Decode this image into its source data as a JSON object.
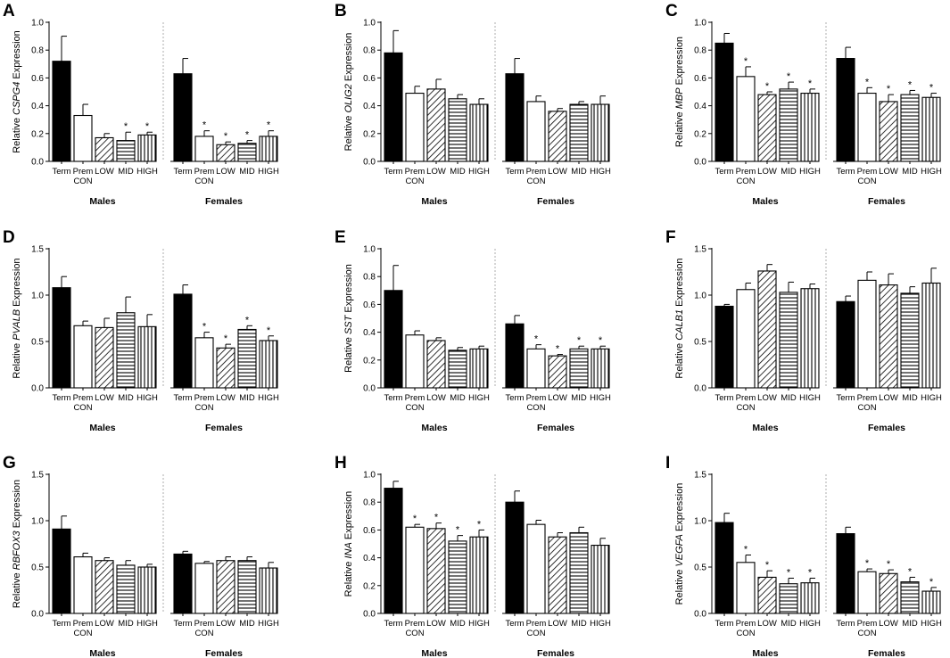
{
  "chart_data": [
    {
      "type": "bar",
      "panel": "A",
      "gene": "CSPG4",
      "ylabel_prefix": "Relative ",
      "ylabel_suffix": " Expression",
      "ylim": [
        0,
        1.0
      ],
      "yticks": [
        "0.0",
        "0.2",
        "0.4",
        "0.6",
        "0.8",
        "1.0"
      ],
      "categories": [
        [
          "Term"
        ],
        [
          "Prem",
          "CON"
        ],
        [
          "LOW"
        ],
        [
          "MID"
        ],
        [
          "HIGH"
        ]
      ],
      "groups": [
        {
          "name": "Males",
          "values": [
            0.72,
            0.33,
            0.17,
            0.15,
            0.19
          ],
          "errors": [
            0.18,
            0.08,
            0.03,
            0.06,
            0.02
          ],
          "sig": [
            false,
            false,
            false,
            true,
            true
          ]
        },
        {
          "name": "Females",
          "values": [
            0.63,
            0.18,
            0.12,
            0.13,
            0.18
          ],
          "errors": [
            0.11,
            0.04,
            0.02,
            0.02,
            0.04
          ],
          "sig": [
            false,
            true,
            true,
            true,
            true
          ]
        }
      ]
    },
    {
      "type": "bar",
      "panel": "B",
      "gene": "OLIG2",
      "ylabel_prefix": "Relative ",
      "ylabel_suffix": " Expression",
      "ylim": [
        0,
        1.0
      ],
      "yticks": [
        "0.0",
        "0.2",
        "0.4",
        "0.6",
        "0.8",
        "1.0"
      ],
      "categories": [
        [
          "Term"
        ],
        [
          "Prem",
          "CON"
        ],
        [
          "LOW"
        ],
        [
          "MID"
        ],
        [
          "HIGH"
        ]
      ],
      "groups": [
        {
          "name": "Males",
          "values": [
            0.78,
            0.49,
            0.52,
            0.45,
            0.41
          ],
          "errors": [
            0.16,
            0.05,
            0.07,
            0.03,
            0.04
          ],
          "sig": [
            false,
            false,
            false,
            false,
            false
          ]
        },
        {
          "name": "Females",
          "values": [
            0.63,
            0.43,
            0.36,
            0.41,
            0.41
          ],
          "errors": [
            0.11,
            0.04,
            0.02,
            0.02,
            0.06
          ],
          "sig": [
            false,
            false,
            false,
            false,
            false
          ]
        }
      ]
    },
    {
      "type": "bar",
      "panel": "C",
      "gene": "MBP",
      "ylabel_prefix": "Relative ",
      "ylabel_suffix": " Expression",
      "ylim": [
        0,
        1.0
      ],
      "yticks": [
        "0.0",
        "0.2",
        "0.4",
        "0.6",
        "0.8",
        "1.0"
      ],
      "categories": [
        [
          "Term"
        ],
        [
          "Prem",
          "CON"
        ],
        [
          "LOW"
        ],
        [
          "MID"
        ],
        [
          "HIGH"
        ]
      ],
      "groups": [
        {
          "name": "Males",
          "values": [
            0.85,
            0.61,
            0.48,
            0.52,
            0.49
          ],
          "errors": [
            0.07,
            0.07,
            0.02,
            0.05,
            0.03
          ],
          "sig": [
            false,
            true,
            true,
            true,
            true
          ]
        },
        {
          "name": "Females",
          "values": [
            0.74,
            0.49,
            0.43,
            0.48,
            0.46
          ],
          "errors": [
            0.08,
            0.04,
            0.05,
            0.03,
            0.03
          ],
          "sig": [
            false,
            true,
            true,
            true,
            true
          ]
        }
      ]
    },
    {
      "type": "bar",
      "panel": "D",
      "gene": "PVALB",
      "ylabel_prefix": "Relative ",
      "ylabel_suffix": " Expression",
      "ylim": [
        0,
        1.5
      ],
      "yticks": [
        "0.0",
        "0.5",
        "1.0",
        "1.5"
      ],
      "categories": [
        [
          "Term"
        ],
        [
          "Prem",
          "CON"
        ],
        [
          "LOW"
        ],
        [
          "MID"
        ],
        [
          "HIGH"
        ]
      ],
      "groups": [
        {
          "name": "Males",
          "values": [
            1.08,
            0.67,
            0.65,
            0.81,
            0.66
          ],
          "errors": [
            0.12,
            0.05,
            0.1,
            0.17,
            0.13
          ],
          "sig": [
            false,
            false,
            false,
            false,
            false
          ]
        },
        {
          "name": "Females",
          "values": [
            1.01,
            0.54,
            0.43,
            0.63,
            0.51
          ],
          "errors": [
            0.1,
            0.06,
            0.04,
            0.04,
            0.05
          ],
          "sig": [
            false,
            true,
            true,
            true,
            true
          ]
        }
      ]
    },
    {
      "type": "bar",
      "panel": "E",
      "gene": "SST",
      "ylabel_prefix": "Relative ",
      "ylabel_suffix": " Expression",
      "ylim": [
        0,
        1.0
      ],
      "yticks": [
        "0.0",
        "0.2",
        "0.4",
        "0.6",
        "0.8",
        "1.0"
      ],
      "categories": [
        [
          "Term"
        ],
        [
          "Prem",
          "CON"
        ],
        [
          "LOW"
        ],
        [
          "MID"
        ],
        [
          "HIGH"
        ]
      ],
      "groups": [
        {
          "name": "Males",
          "values": [
            0.7,
            0.38,
            0.34,
            0.27,
            0.28
          ],
          "errors": [
            0.18,
            0.03,
            0.02,
            0.02,
            0.02
          ],
          "sig": [
            false,
            false,
            false,
            false,
            false
          ]
        },
        {
          "name": "Females",
          "values": [
            0.46,
            0.28,
            0.23,
            0.28,
            0.28
          ],
          "errors": [
            0.06,
            0.03,
            0.01,
            0.02,
            0.02
          ],
          "sig": [
            false,
            true,
            true,
            true,
            true
          ]
        }
      ]
    },
    {
      "type": "bar",
      "panel": "F",
      "gene": "CALB1",
      "ylabel_prefix": "Relative ",
      "ylabel_suffix": " Expression",
      "ylim": [
        0,
        1.5
      ],
      "yticks": [
        "0.0",
        "0.5",
        "1.0",
        "1.5"
      ],
      "categories": [
        [
          "Term"
        ],
        [
          "Prem",
          "CON"
        ],
        [
          "LOW"
        ],
        [
          "MID"
        ],
        [
          "HIGH"
        ]
      ],
      "groups": [
        {
          "name": "Males",
          "values": [
            0.88,
            1.06,
            1.26,
            1.03,
            1.07
          ],
          "errors": [
            0.02,
            0.07,
            0.07,
            0.11,
            0.05
          ],
          "sig": [
            false,
            false,
            false,
            false,
            false
          ]
        },
        {
          "name": "Females",
          "values": [
            0.93,
            1.16,
            1.11,
            1.02,
            1.13
          ],
          "errors": [
            0.06,
            0.09,
            0.12,
            0.07,
            0.16
          ],
          "sig": [
            false,
            false,
            false,
            false,
            false
          ]
        }
      ]
    },
    {
      "type": "bar",
      "panel": "G",
      "gene": "RBFOX3",
      "ylabel_prefix": "Relative ",
      "ylabel_suffix": " Expression",
      "ylim": [
        0,
        1.5
      ],
      "yticks": [
        "0.0",
        "0.5",
        "1.0",
        "1.5"
      ],
      "categories": [
        [
          "Term"
        ],
        [
          "Prem",
          "CON"
        ],
        [
          "LOW"
        ],
        [
          "MID"
        ],
        [
          "HIGH"
        ]
      ],
      "groups": [
        {
          "name": "Males",
          "values": [
            0.91,
            0.61,
            0.57,
            0.52,
            0.5
          ],
          "errors": [
            0.14,
            0.04,
            0.03,
            0.05,
            0.03
          ],
          "sig": [
            false,
            false,
            false,
            false,
            false
          ]
        },
        {
          "name": "Females",
          "values": [
            0.64,
            0.54,
            0.57,
            0.57,
            0.49
          ],
          "errors": [
            0.03,
            0.02,
            0.04,
            0.04,
            0.06
          ],
          "sig": [
            false,
            false,
            false,
            false,
            false
          ]
        }
      ]
    },
    {
      "type": "bar",
      "panel": "H",
      "gene": "INA",
      "ylabel_prefix": "Relative ",
      "ylabel_suffix": " Expression",
      "ylim": [
        0,
        1.0
      ],
      "yticks": [
        "0.0",
        "0.2",
        "0.4",
        "0.6",
        "0.8",
        "1.0"
      ],
      "categories": [
        [
          "Term"
        ],
        [
          "Prem",
          "CON"
        ],
        [
          "LOW"
        ],
        [
          "MID"
        ],
        [
          "HIGH"
        ]
      ],
      "groups": [
        {
          "name": "Males",
          "values": [
            0.9,
            0.62,
            0.61,
            0.52,
            0.55
          ],
          "errors": [
            0.05,
            0.02,
            0.04,
            0.04,
            0.05
          ],
          "sig": [
            false,
            true,
            true,
            true,
            true
          ]
        },
        {
          "name": "Females",
          "values": [
            0.8,
            0.64,
            0.55,
            0.58,
            0.49
          ],
          "errors": [
            0.08,
            0.03,
            0.03,
            0.04,
            0.05
          ],
          "sig": [
            false,
            false,
            false,
            false,
            false
          ]
        }
      ]
    },
    {
      "type": "bar",
      "panel": "I",
      "gene": "VEGFA",
      "ylabel_prefix": "Relative ",
      "ylabel_suffix": " Expression",
      "ylim": [
        0,
        1.5
      ],
      "yticks": [
        "0.0",
        "0.5",
        "1.0",
        "1.5"
      ],
      "categories": [
        [
          "Term"
        ],
        [
          "Prem",
          "CON"
        ],
        [
          "LOW"
        ],
        [
          "MID"
        ],
        [
          "HIGH"
        ]
      ],
      "groups": [
        {
          "name": "Males",
          "values": [
            0.98,
            0.55,
            0.39,
            0.32,
            0.33
          ],
          "errors": [
            0.1,
            0.08,
            0.07,
            0.06,
            0.05
          ],
          "sig": [
            false,
            true,
            true,
            true,
            true
          ]
        },
        {
          "name": "Females",
          "values": [
            0.86,
            0.45,
            0.43,
            0.34,
            0.24
          ],
          "errors": [
            0.07,
            0.03,
            0.04,
            0.05,
            0.04
          ],
          "sig": [
            false,
            true,
            true,
            true,
            true
          ]
        }
      ]
    }
  ],
  "significance_marker": "*",
  "bar_patterns": [
    "solid-black",
    "white",
    "diagonal-hatch",
    "horizontal-lines",
    "vertical-lines"
  ]
}
